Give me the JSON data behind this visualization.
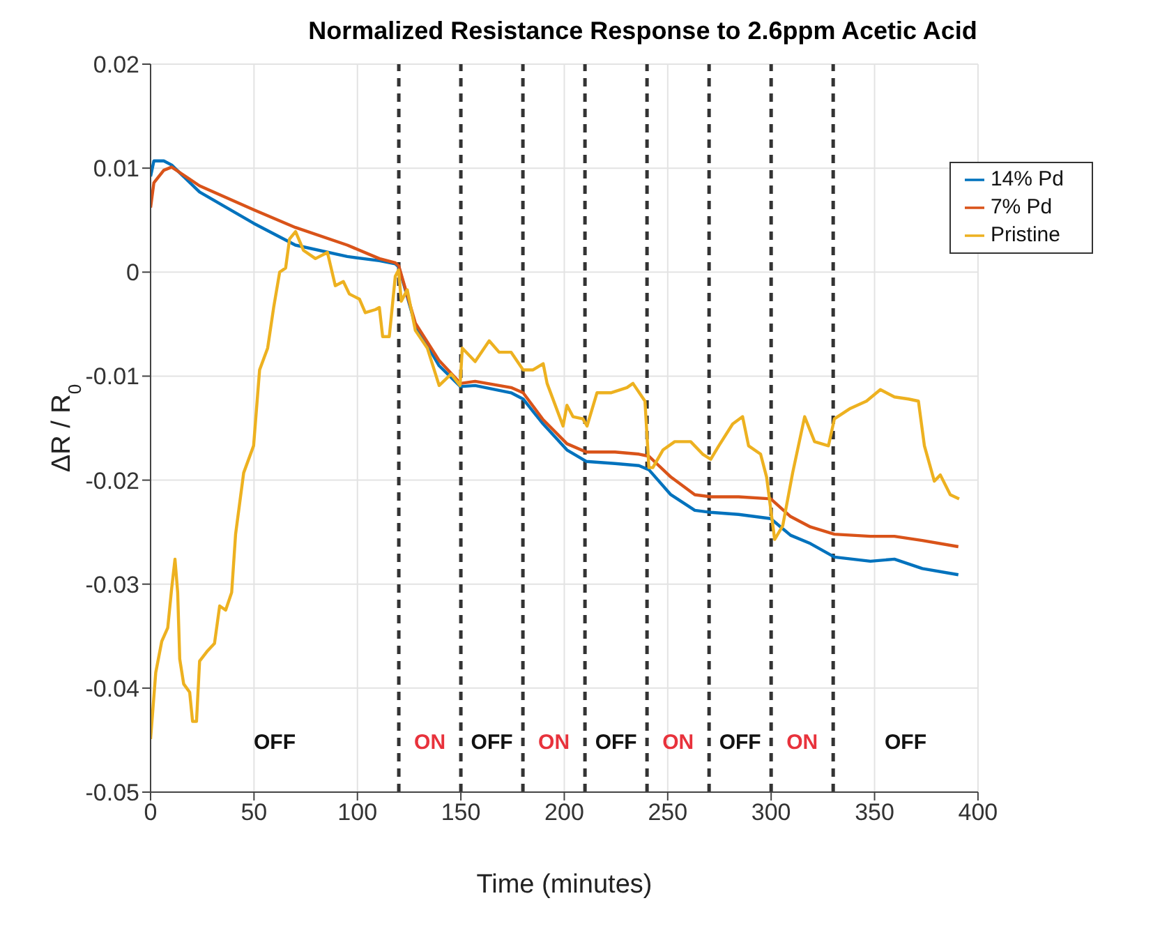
{
  "chart_data": {
    "type": "line",
    "title": "Normalized Resistance Response to 2.6ppm Acetic Acid",
    "xlabel": "Time (minutes)",
    "ylabel": "ΔR / R$_{0}$",
    "xlim": [
      0,
      400
    ],
    "xticks": [
      0,
      50,
      100,
      150,
      200,
      250,
      300,
      350,
      400
    ],
    "ylim": [
      -0.05,
      0.02
    ],
    "yticks": [
      -0.05,
      -0.04,
      -0.03,
      -0.02,
      -0.01,
      0,
      0.01,
      0.02
    ],
    "grid": true,
    "legend": "top right",
    "marker": "none",
    "line_style": "solid",
    "series": [
      {
        "name": "14% Pd",
        "color": "#0072bd",
        "x": [
          0,
          1.6,
          6.4,
          10.2,
          23.7,
          49.8,
          70,
          95.1,
          110.6,
          118.3,
          120,
          128,
          139.5,
          149.8,
          156.9,
          174.3,
          180.1,
          189.8,
          201.3,
          210.6,
          224.5,
          236.1,
          240.9,
          251.5,
          263.1,
          270.8,
          284.3,
          299.8,
          309.4,
          319,
          330.6,
          348,
          359.6,
          373.1,
          390.5
        ],
        "values": [
          0.0092,
          0.0107,
          0.0107,
          0.0103,
          0.0077,
          0.0047,
          0.0026,
          0.0015,
          0.0011,
          0.0008,
          0.0005,
          -0.0051,
          -0.009,
          -0.011,
          -0.0109,
          -0.0116,
          -0.0122,
          -0.0146,
          -0.0171,
          -0.0182,
          -0.0184,
          -0.0186,
          -0.019,
          -0.0214,
          -0.0229,
          -0.0231,
          -0.0233,
          -0.0237,
          -0.0253,
          -0.0261,
          -0.0274,
          -0.0278,
          -0.0276,
          -0.0285,
          -0.0291
        ]
      },
      {
        "name": "7% Pd",
        "color": "#d95319",
        "x": [
          0,
          1.6,
          6.4,
          10.2,
          23.7,
          49.8,
          70,
          95.1,
          110.6,
          118.3,
          120,
          128,
          139.5,
          149.8,
          156.9,
          174.3,
          180.1,
          189.8,
          201.3,
          210.6,
          224.5,
          236.1,
          240.9,
          251.5,
          263.1,
          270.8,
          284.3,
          299.8,
          309.4,
          319,
          330.6,
          348,
          359.6,
          373.1,
          390.5
        ],
        "values": [
          0.0062,
          0.0086,
          0.0098,
          0.0101,
          0.0083,
          0.006,
          0.0043,
          0.0026,
          0.0013,
          0.0009,
          0.0006,
          -0.0049,
          -0.0085,
          -0.0107,
          -0.0105,
          -0.0111,
          -0.0116,
          -0.0142,
          -0.0165,
          -0.0173,
          -0.0173,
          -0.0175,
          -0.0177,
          -0.0197,
          -0.0214,
          -0.0216,
          -0.0216,
          -0.0218,
          -0.0235,
          -0.0245,
          -0.0252,
          -0.0254,
          -0.0254,
          -0.0258,
          -0.0264
        ]
      },
      {
        "name": "Pristine",
        "color": "#edb120",
        "x": [
          0,
          2.5,
          5.4,
          8.3,
          10.2,
          11.8,
          13.1,
          14.1,
          16,
          18.9,
          20.3,
          22.2,
          23.7,
          27.6,
          30.9,
          33.4,
          36.3,
          39.2,
          41.1,
          45,
          49.8,
          52.7,
          56.6,
          59.5,
          62.4,
          65.3,
          67.2,
          70.1,
          73.9,
          79.7,
          85.5,
          89.3,
          93.2,
          96.1,
          101,
          103.8,
          108.7,
          110.6,
          112.2,
          115.4,
          118.3,
          119.9,
          121.2,
          124.1,
          128,
          133.8,
          139.5,
          145.3,
          149.6,
          150.7,
          156.9,
          163.7,
          168.5,
          174.3,
          180.1,
          184.9,
          189.8,
          191.7,
          199.4,
          201.3,
          204.2,
          209,
          211,
          215.8,
          222.5,
          230.3,
          233.2,
          239,
          240.9,
          242.8,
          247.7,
          253.4,
          261.1,
          266.9,
          270.8,
          274.7,
          281.4,
          286.2,
          289.1,
          294.9,
          297.8,
          301.7,
          305.6,
          310.4,
          316.2,
          321,
          327.7,
          330.6,
          338.3,
          346.1,
          352.8,
          359.6,
          366.4,
          371.2,
          374.1,
          378.9,
          381.8,
          386.6,
          390.9
        ],
        "values": [
          -0.0449,
          -0.0385,
          -0.0355,
          -0.0342,
          -0.0304,
          -0.0276,
          -0.0308,
          -0.0372,
          -0.0396,
          -0.0404,
          -0.0432,
          -0.0432,
          -0.0374,
          -0.0364,
          -0.0357,
          -0.0321,
          -0.0325,
          -0.0308,
          -0.0252,
          -0.0193,
          -0.0167,
          -0.0094,
          -0.0073,
          -0.0034,
          0,
          0.0004,
          0.0032,
          0.0039,
          0.0021,
          0.0013,
          0.0019,
          -0.0013,
          -0.0009,
          -0.0021,
          -0.0026,
          -0.0039,
          -0.0036,
          -0.0034,
          -0.0062,
          -0.0062,
          -0.0004,
          0.0002,
          -0.0028,
          -0.0017,
          -0.0056,
          -0.0073,
          -0.0109,
          -0.0098,
          -0.0109,
          -0.0073,
          -0.0086,
          -0.0066,
          -0.0077,
          -0.0077,
          -0.0094,
          -0.0094,
          -0.0088,
          -0.0107,
          -0.0148,
          -0.0128,
          -0.0139,
          -0.0141,
          -0.0148,
          -0.0116,
          -0.0116,
          -0.0111,
          -0.0107,
          -0.0124,
          -0.0188,
          -0.0188,
          -0.0171,
          -0.0163,
          -0.0163,
          -0.0175,
          -0.018,
          -0.0167,
          -0.0146,
          -0.0139,
          -0.0167,
          -0.0175,
          -0.0197,
          -0.0257,
          -0.0244,
          -0.0193,
          -0.0139,
          -0.0163,
          -0.0167,
          -0.0141,
          -0.0131,
          -0.0124,
          -0.0113,
          -0.012,
          -0.0122,
          -0.0124,
          -0.0167,
          -0.0201,
          -0.0195,
          -0.0214,
          -0.0218
        ]
      }
    ],
    "ref_lines": [
      {
        "axis": "x",
        "value": 120,
        "color": "#333333",
        "line_style": "dashed"
      },
      {
        "axis": "x",
        "value": 150,
        "color": "#333333",
        "line_style": "dashed"
      },
      {
        "axis": "x",
        "value": 180,
        "color": "#333333",
        "line_style": "dashed"
      },
      {
        "axis": "x",
        "value": 210,
        "color": "#333333",
        "line_style": "dashed"
      },
      {
        "axis": "x",
        "value": 240,
        "color": "#333333",
        "line_style": "dashed"
      },
      {
        "axis": "x",
        "value": 270,
        "color": "#333333",
        "line_style": "dashed"
      },
      {
        "axis": "x",
        "value": 300,
        "color": "#333333",
        "line_style": "dashed"
      },
      {
        "axis": "x",
        "value": 330,
        "color": "#333333",
        "line_style": "dashed"
      }
    ],
    "annotations": [
      "OFF",
      "ON",
      "OFF",
      "ON",
      "OFF",
      "ON",
      "OFF",
      "ON",
      "OFF"
    ]
  }
}
